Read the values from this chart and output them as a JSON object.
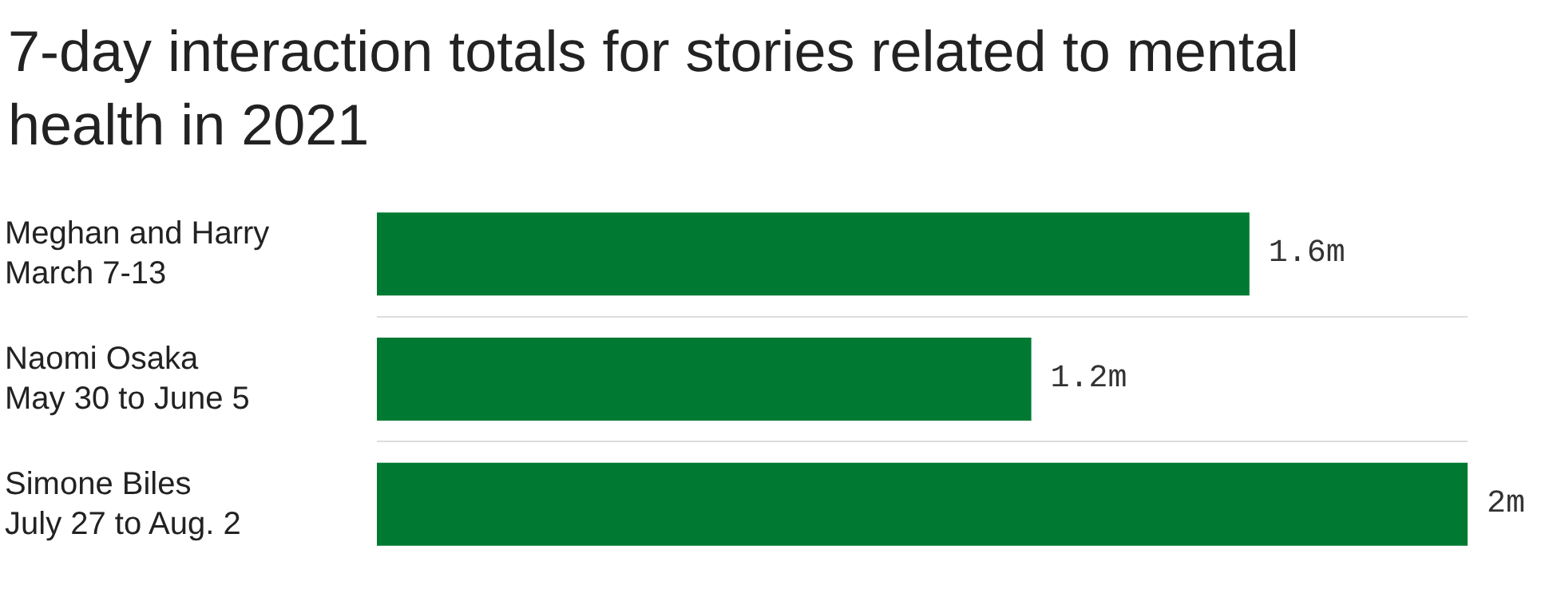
{
  "chart_data": {
    "type": "bar",
    "orientation": "horizontal",
    "title": "7-day interaction totals for stories related to mental health in 2021",
    "categories": [
      "Meghan and Harry\nMarch 7-13",
      "Naomi Osaka\nMay 30 to June 5",
      "Simone Biles\nJuly 27 to Aug. 2"
    ],
    "values": [
      1.6,
      1.2,
      2
    ],
    "value_labels": [
      "1.6m",
      "1.2m",
      "2m"
    ],
    "color": "#007a33",
    "grid": "y"
  }
}
